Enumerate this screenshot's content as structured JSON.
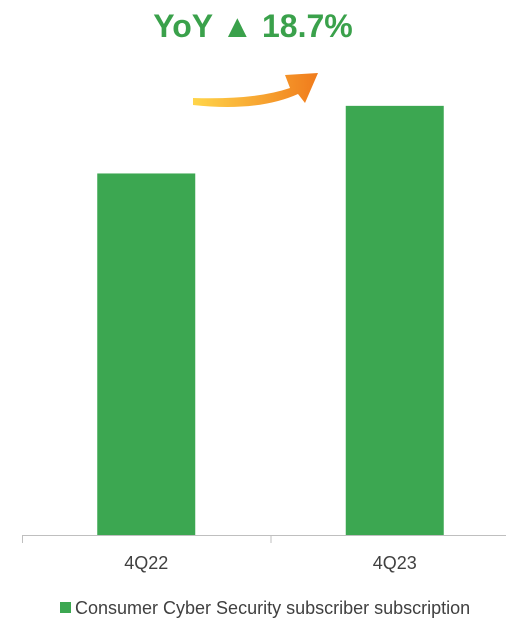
{
  "headline": {
    "prefix": "YoY",
    "arrow": "▲",
    "value": "18.7%"
  },
  "colors": {
    "headline": "#3aa14b",
    "bar": "#3ca751",
    "arrow_start": "#ffd54a",
    "arrow_end": "#f07b1c",
    "axis": "#bfbfbf",
    "tick_label": "#404040"
  },
  "chart_data": {
    "type": "bar",
    "categories": [
      "4Q22",
      "4Q23"
    ],
    "series": [
      {
        "name": "Consumer Cyber Security subscriber subscription",
        "values": [
          100,
          118.7
        ]
      }
    ],
    "ylim": [
      0,
      130
    ],
    "grid": false,
    "legend_position": "bottom-left",
    "annotation": "YoY ▲ 18.7%"
  }
}
